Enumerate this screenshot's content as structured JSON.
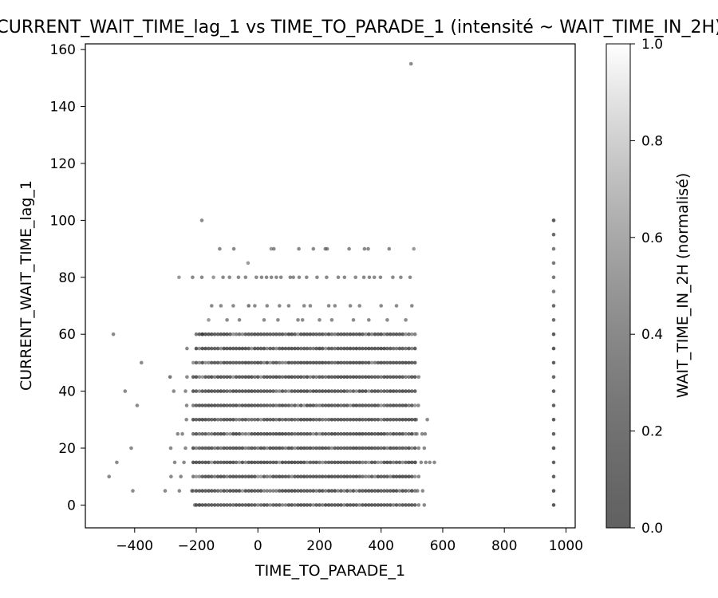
{
  "chart_data": {
    "type": "scatter",
    "title": "CURRENT_WAIT_TIME_lag_1 vs TIME_TO_PARADE_1 (intensité ~ WAIT_TIME_IN_2H)",
    "xlabel": "TIME_TO_PARADE_1",
    "ylabel": "CURRENT_WAIT_TIME_lag_1",
    "xlim": [
      -560,
      1030
    ],
    "ylim": [
      -8,
      162
    ],
    "xticks": [
      -400,
      -200,
      0,
      200,
      400,
      600,
      800,
      1000
    ],
    "yticks": [
      0,
      20,
      40,
      60,
      80,
      100,
      120,
      140,
      160
    ],
    "grid": false,
    "colorbar": {
      "label": "WAIT_TIME_IN_2H (normalisé)",
      "range": [
        0,
        1
      ],
      "ticks": [
        "0.0",
        "0.2",
        "0.4",
        "0.6",
        "0.8",
        "1.0"
      ],
      "colormap": "grey",
      "color_low": "#000000",
      "color_high": "#ffffff"
    },
    "dense_block": {
      "x_range": [
        -210,
        510
      ],
      "x_step": 10,
      "y_levels": [
        0,
        5,
        10,
        15,
        20,
        25,
        30,
        35,
        40,
        45,
        50,
        55,
        60
      ]
    },
    "vertical_cluster": {
      "x": 960,
      "y_levels": [
        0,
        5,
        10,
        15,
        20,
        25,
        30,
        35,
        40,
        45,
        50,
        55,
        60,
        65,
        70,
        75,
        80,
        85,
        90,
        95,
        100
      ]
    },
    "points": [
      [
        497,
        155,
        0.3
      ],
      [
        -182,
        100,
        0.3
      ],
      [
        960,
        100,
        0.3
      ],
      [
        -124,
        90,
        0.3
      ],
      [
        -78,
        90,
        0.3
      ],
      [
        43,
        90,
        0.4
      ],
      [
        52,
        90,
        0.3
      ],
      [
        133,
        90,
        0.3
      ],
      [
        180,
        90,
        0.3
      ],
      [
        219,
        90,
        0.3
      ],
      [
        225,
        90,
        0.3
      ],
      [
        296,
        90,
        0.3
      ],
      [
        346,
        90,
        0.3
      ],
      [
        358,
        90,
        0.3
      ],
      [
        426,
        90,
        0.3
      ],
      [
        506,
        90,
        0.4
      ],
      [
        -32,
        85,
        0.4
      ],
      [
        -256,
        80,
        0.4
      ],
      [
        -212,
        80,
        0.3
      ],
      [
        -182,
        80,
        0.3
      ],
      [
        -144,
        80,
        0.4
      ],
      [
        -113,
        80,
        0.3
      ],
      [
        -92,
        80,
        0.3
      ],
      [
        -63,
        80,
        0.3
      ],
      [
        -40,
        80,
        0.3
      ],
      [
        -5,
        80,
        0.3
      ],
      [
        12,
        80,
        0.3
      ],
      [
        28,
        80,
        0.3
      ],
      [
        44,
        80,
        0.3
      ],
      [
        60,
        80,
        0.3
      ],
      [
        75,
        80,
        0.3
      ],
      [
        105,
        80,
        0.3
      ],
      [
        115,
        80,
        0.3
      ],
      [
        134,
        80,
        0.3
      ],
      [
        158,
        80,
        0.3
      ],
      [
        192,
        80,
        0.3
      ],
      [
        223,
        80,
        0.3
      ],
      [
        261,
        80,
        0.3
      ],
      [
        281,
        80,
        0.3
      ],
      [
        317,
        80,
        0.3
      ],
      [
        344,
        80,
        0.3
      ],
      [
        362,
        80,
        0.3
      ],
      [
        378,
        80,
        0.3
      ],
      [
        398,
        80,
        0.3
      ],
      [
        438,
        80,
        0.3
      ],
      [
        464,
        80,
        0.3
      ],
      [
        494,
        80,
        0.3
      ],
      [
        -150,
        70,
        0.3
      ],
      [
        -120,
        70,
        0.3
      ],
      [
        -80,
        70,
        0.3
      ],
      [
        -30,
        70,
        0.2
      ],
      [
        -10,
        70,
        0.3
      ],
      [
        30,
        70,
        0.3
      ],
      [
        70,
        70,
        0.3
      ],
      [
        100,
        70,
        0.3
      ],
      [
        150,
        70,
        0.3
      ],
      [
        170,
        70,
        0.3
      ],
      [
        230,
        70,
        0.3
      ],
      [
        250,
        70,
        0.3
      ],
      [
        300,
        70,
        0.3
      ],
      [
        330,
        70,
        0.3
      ],
      [
        400,
        70,
        0.3
      ],
      [
        450,
        70,
        0.3
      ],
      [
        500,
        70,
        0.3
      ],
      [
        -160,
        65,
        0.4
      ],
      [
        -100,
        65,
        0.3
      ],
      [
        -60,
        65,
        0.3
      ],
      [
        20,
        65,
        0.3
      ],
      [
        65,
        65,
        0.3
      ],
      [
        130,
        65,
        0.3
      ],
      [
        145,
        65,
        0.3
      ],
      [
        200,
        65,
        0.3
      ],
      [
        240,
        65,
        0.3
      ],
      [
        310,
        65,
        0.3
      ],
      [
        360,
        65,
        0.3
      ],
      [
        420,
        65,
        0.3
      ],
      [
        480,
        65,
        0.3
      ],
      [
        -469,
        60,
        0.3
      ],
      [
        -378,
        50,
        0.3
      ],
      [
        -431,
        40,
        0.3
      ],
      [
        -392,
        35,
        0.3
      ],
      [
        -411,
        20,
        0.3
      ],
      [
        -458,
        15,
        0.3
      ],
      [
        -483,
        10,
        0.3
      ],
      [
        -406,
        5,
        0.3
      ],
      [
        -285,
        45,
        0.2
      ],
      [
        -273,
        40,
        0.3
      ],
      [
        -283,
        20,
        0.3
      ],
      [
        -282,
        10,
        0.3
      ],
      [
        -301,
        5,
        0.3
      ],
      [
        -230,
        55,
        0.3
      ],
      [
        -230,
        45,
        0.3
      ],
      [
        -235,
        40,
        0.3
      ],
      [
        -231,
        35,
        0.3
      ],
      [
        -232,
        30,
        0.3
      ],
      [
        -245,
        25,
        0.3
      ],
      [
        -260,
        25,
        0.3
      ],
      [
        -270,
        15,
        0.3
      ],
      [
        -240,
        15,
        0.3
      ],
      [
        -235,
        20,
        0.3
      ],
      [
        -250,
        10,
        0.3
      ],
      [
        -255,
        5,
        0.3
      ],
      [
        522,
        45,
        0.3
      ],
      [
        521,
        35,
        0.3
      ],
      [
        514,
        30,
        0.3
      ],
      [
        550,
        30,
        0.3
      ],
      [
        516,
        25,
        0.3
      ],
      [
        533,
        25,
        0.3
      ],
      [
        543,
        25,
        0.3
      ],
      [
        522,
        20,
        0.3
      ],
      [
        540,
        20,
        0.3
      ],
      [
        511,
        15,
        0.3
      ],
      [
        530,
        15,
        0.3
      ],
      [
        545,
        15,
        0.3
      ],
      [
        558,
        15,
        0.3
      ],
      [
        573,
        15,
        0.3
      ],
      [
        522,
        10,
        0.3
      ],
      [
        518,
        5,
        0.3
      ],
      [
        535,
        5,
        0.3
      ],
      [
        540,
        0,
        0.3
      ],
      [
        522,
        0,
        0.3
      ],
      [
        -205,
        0,
        0.3
      ],
      [
        -190,
        0,
        0.2
      ],
      [
        -214,
        5,
        0.2
      ],
      [
        -200,
        60,
        0.2
      ],
      [
        -180,
        60,
        0.2
      ]
    ]
  }
}
